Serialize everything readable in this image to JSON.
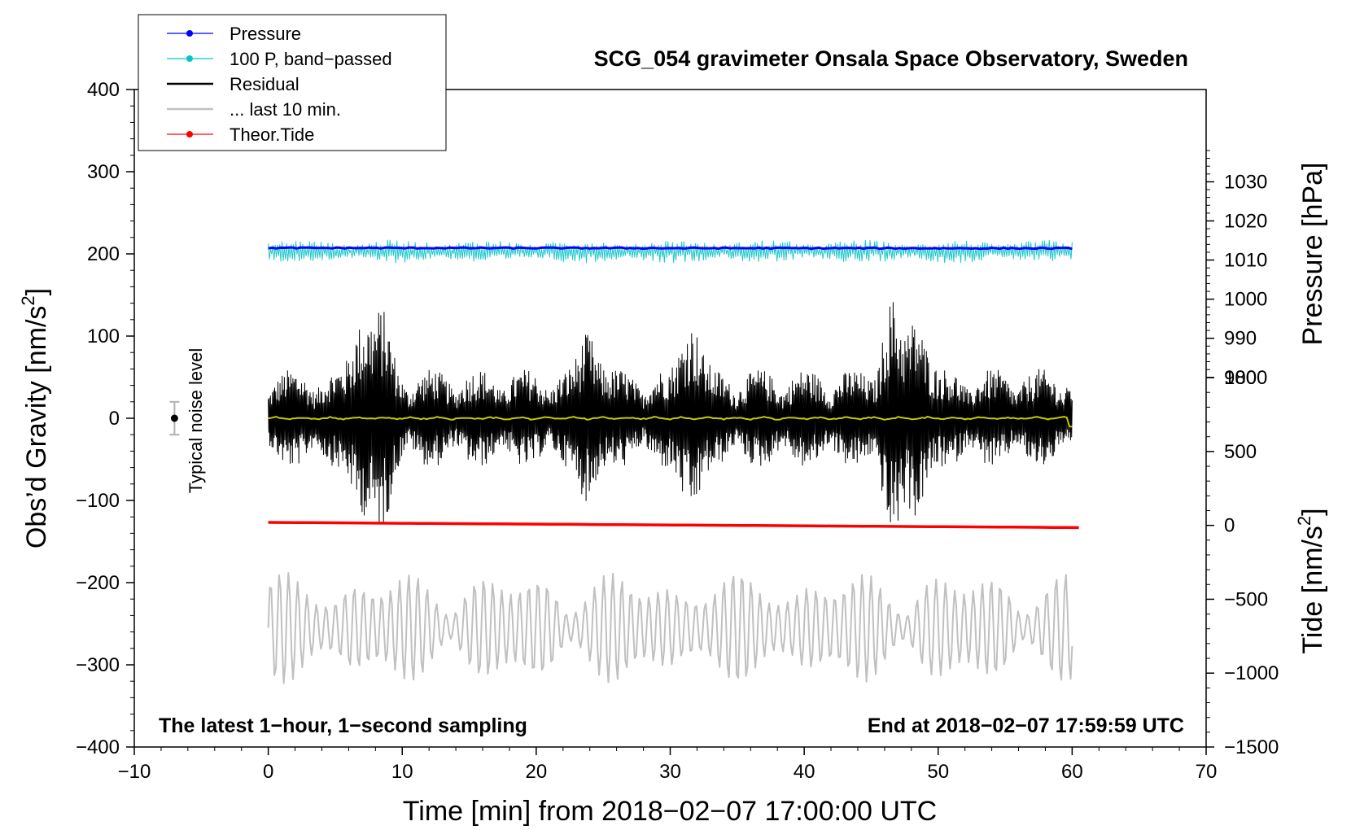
{
  "chart_data": {
    "type": "line",
    "title": "SCG_054 gravimeter Onsala Space Observatory, Sweden",
    "xlabel": "Time [min] from 2018−02−07 17:00:00 UTC",
    "ylabel_left": "Obs’d Gravity [nm/s",
    "ylabel_left_sup": "2",
    "ylabel_left_end": "]",
    "ylabel_right_pressure": "Pressure [hPa]",
    "ylabel_right_tide": "Tide [nm/s",
    "ylabel_right_tide_sup": "2",
    "ylabel_right_tide_end": "]",
    "xlim": [
      -10,
      70
    ],
    "ylim_left": [
      -400,
      400
    ],
    "x_ticks": [
      -10,
      0,
      10,
      20,
      30,
      40,
      50,
      60,
      70
    ],
    "x_tick_labels": [
      "−10",
      "0",
      "10",
      "20",
      "30",
      "40",
      "50",
      "60",
      "70"
    ],
    "y_left_ticks": [
      400,
      300,
      200,
      100,
      0,
      -100,
      -200,
      -300,
      -400
    ],
    "y_left_tick_labels": [
      "400",
      "300",
      "200",
      "100",
      "0",
      "−100",
      "−200",
      "−300",
      "−400"
    ],
    "pressure_axis": {
      "ticks": [
        1030,
        1020,
        1010,
        1000,
        990,
        980
      ],
      "tick_labels": [
        "1030",
        "1020",
        "1010",
        "1000",
        "990",
        "980"
      ],
      "ylim": [
        885.5,
        1053.6
      ]
    },
    "tide_axis": {
      "ticks": [
        1000,
        500,
        0,
        -500,
        -1000,
        -1500
      ],
      "tick_labels": [
        "1000",
        "500",
        "0",
        "−500",
        "−1000",
        "−1500"
      ],
      "ylim": [
        -1500,
        2950
      ]
    },
    "legend": {
      "position": "top-left",
      "entries": [
        {
          "label": "Pressure",
          "color": "#0000ff",
          "marker": true
        },
        {
          "label": "100 P, band−passed",
          "color": "#00c8c8",
          "marker": true
        },
        {
          "label": "Residual",
          "color": "#000000",
          "marker": false
        },
        {
          "label": "... last 10 min.",
          "color": "#c0c0c0",
          "marker": false
        },
        {
          "label": "Theor.Tide",
          "color": "#ff0000",
          "marker": true
        }
      ]
    },
    "series": [
      {
        "name": "Pressure",
        "axis": "pressure",
        "color": "#0000ff",
        "x_range": [
          0,
          60
        ],
        "start": 1013.1,
        "end": 1013.0,
        "amplitude": 0.3
      },
      {
        "name": "100 P, band−passed",
        "axis": "left",
        "color": "#20c8c8",
        "x_range": [
          0,
          60
        ],
        "center": 203,
        "amplitude": 14
      },
      {
        "name": "Residual",
        "axis": "left",
        "color": "#000000",
        "x_range": [
          0,
          60
        ],
        "center": 0,
        "amplitude": 60,
        "bursts": [
          [
            7,
            140
          ],
          [
            8.5,
            130
          ],
          [
            24,
            120
          ],
          [
            31.5,
            140
          ],
          [
            46.5,
            150
          ],
          [
            48.5,
            140
          ]
        ]
      },
      {
        "name": "smoothed residual",
        "axis": "left",
        "color": "#c8c800",
        "x_range": [
          0,
          60
        ],
        "center": 0,
        "amplitude": 2
      },
      {
        "name": "... last 10 min.",
        "axis": "left",
        "color": "#c0c0c0",
        "x_range": [
          0,
          60
        ],
        "center": -255,
        "amplitude": 55
      },
      {
        "name": "Theor.Tide",
        "axis": "tide",
        "color": "#ff0000",
        "x_range": [
          0,
          60.5
        ],
        "start": 20,
        "end": -15
      }
    ],
    "noise_bar": {
      "x": -7,
      "y": 0,
      "low": -20,
      "high": 20,
      "label": "Typical noise level"
    },
    "annotations": {
      "bottom_left": "The latest 1−hour, 1−second sampling",
      "bottom_right": "End at 2018−02−07 17:59:59 UTC"
    }
  }
}
